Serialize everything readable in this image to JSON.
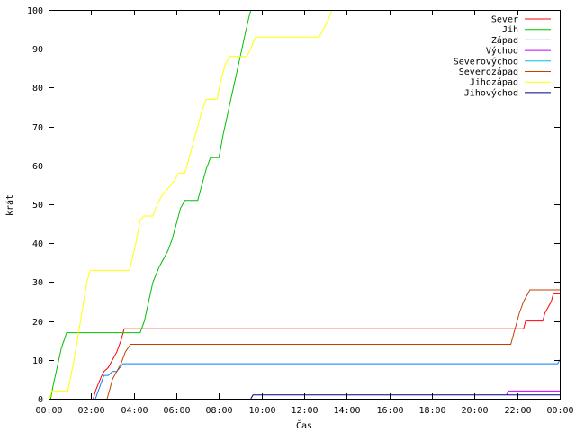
{
  "chart_data": {
    "type": "line",
    "title": "",
    "xlabel": "Čas",
    "ylabel": "krát",
    "xlim": [
      0,
      24
    ],
    "ylim": [
      0,
      100
    ],
    "grid": false,
    "legend": "top-right",
    "xticks": [
      "00:00",
      "02:00",
      "04:00",
      "06:00",
      "08:00",
      "10:00",
      "12:00",
      "14:00",
      "16:00",
      "18:00",
      "20:00",
      "22:00",
      "00:00"
    ],
    "yticks": [
      "0",
      "10",
      "20",
      "30",
      "40",
      "50",
      "60",
      "70",
      "80",
      "90",
      "100"
    ],
    "series": [
      {
        "name": "Sever",
        "color": "#ff0000",
        "points": [
          [
            2.1,
            0
          ],
          [
            2.2,
            2
          ],
          [
            2.35,
            4
          ],
          [
            2.5,
            6
          ],
          [
            2.6,
            7
          ],
          [
            2.8,
            8
          ],
          [
            3.0,
            10
          ],
          [
            3.2,
            12
          ],
          [
            3.4,
            15
          ],
          [
            3.55,
            18
          ],
          [
            21.8,
            18
          ],
          [
            22.3,
            18
          ],
          [
            22.4,
            20
          ],
          [
            23.2,
            20
          ],
          [
            23.3,
            22
          ],
          [
            23.6,
            25
          ],
          [
            23.7,
            27
          ],
          [
            24,
            27
          ]
        ]
      },
      {
        "name": "Jih",
        "color": "#00c000",
        "points": [
          [
            0.1,
            0
          ],
          [
            0.2,
            3
          ],
          [
            0.4,
            8
          ],
          [
            0.6,
            13
          ],
          [
            0.85,
            17
          ],
          [
            4.3,
            17
          ],
          [
            4.5,
            20
          ],
          [
            4.7,
            25
          ],
          [
            4.9,
            30
          ],
          [
            5.05,
            32
          ],
          [
            5.2,
            34
          ],
          [
            5.4,
            36
          ],
          [
            5.6,
            38
          ],
          [
            5.8,
            41
          ],
          [
            6.0,
            45
          ],
          [
            6.2,
            49
          ],
          [
            6.4,
            51
          ],
          [
            7.0,
            51
          ],
          [
            7.2,
            55
          ],
          [
            7.4,
            59
          ],
          [
            7.6,
            62
          ],
          [
            8.0,
            62
          ],
          [
            8.2,
            68
          ],
          [
            8.4,
            73
          ],
          [
            8.6,
            78
          ],
          [
            8.8,
            83
          ],
          [
            9.0,
            88
          ],
          [
            9.2,
            93
          ],
          [
            9.4,
            98
          ],
          [
            9.5,
            100
          ]
        ]
      },
      {
        "name": "Západ",
        "color": "#0080ff",
        "points": [
          [
            2.2,
            0
          ],
          [
            2.4,
            3
          ],
          [
            2.6,
            6
          ],
          [
            2.8,
            6
          ],
          [
            3.0,
            7
          ],
          [
            3.2,
            7
          ],
          [
            3.5,
            9
          ],
          [
            23.9,
            9
          ],
          [
            24,
            10
          ]
        ]
      },
      {
        "name": "Východ",
        "color": "#c000ff",
        "points": [
          [
            21.5,
            1
          ],
          [
            21.6,
            2
          ],
          [
            24,
            2
          ]
        ]
      },
      {
        "name": "Severovýchod",
        "color": "#00c0e0",
        "points": []
      },
      {
        "name": "Severozápad",
        "color": "#c04000",
        "points": [
          [
            2.75,
            0
          ],
          [
            2.85,
            2
          ],
          [
            3.0,
            5
          ],
          [
            3.2,
            7
          ],
          [
            3.4,
            9
          ],
          [
            3.6,
            12
          ],
          [
            3.85,
            14
          ],
          [
            21.7,
            14
          ],
          [
            21.9,
            18
          ],
          [
            22.1,
            22
          ],
          [
            22.3,
            25
          ],
          [
            22.6,
            28
          ],
          [
            24,
            28
          ]
        ]
      },
      {
        "name": "Jihozápad",
        "color": "#ffff00",
        "points": [
          [
            0.05,
            0
          ],
          [
            0.15,
            2
          ],
          [
            0.9,
            2
          ],
          [
            1.2,
            10
          ],
          [
            1.5,
            20
          ],
          [
            1.8,
            30
          ],
          [
            1.95,
            33
          ],
          [
            3.8,
            33
          ],
          [
            4.1,
            40
          ],
          [
            4.3,
            46
          ],
          [
            4.5,
            47
          ],
          [
            4.9,
            47
          ],
          [
            5.1,
            50
          ],
          [
            5.3,
            52
          ],
          [
            5.6,
            54
          ],
          [
            5.9,
            56
          ],
          [
            6.1,
            58
          ],
          [
            6.4,
            58
          ],
          [
            6.7,
            64
          ],
          [
            7.0,
            70
          ],
          [
            7.2,
            74
          ],
          [
            7.4,
            77
          ],
          [
            7.9,
            77
          ],
          [
            8.1,
            82
          ],
          [
            8.3,
            86
          ],
          [
            8.5,
            88
          ],
          [
            9.3,
            88
          ],
          [
            9.5,
            90
          ],
          [
            9.7,
            93
          ],
          [
            12.7,
            93
          ],
          [
            12.9,
            95
          ],
          [
            13.1,
            97
          ],
          [
            13.3,
            100
          ]
        ]
      },
      {
        "name": "Jihovýchod",
        "color": "#000080",
        "points": [
          [
            9.5,
            0
          ],
          [
            9.6,
            1
          ],
          [
            24,
            1
          ]
        ]
      }
    ]
  }
}
